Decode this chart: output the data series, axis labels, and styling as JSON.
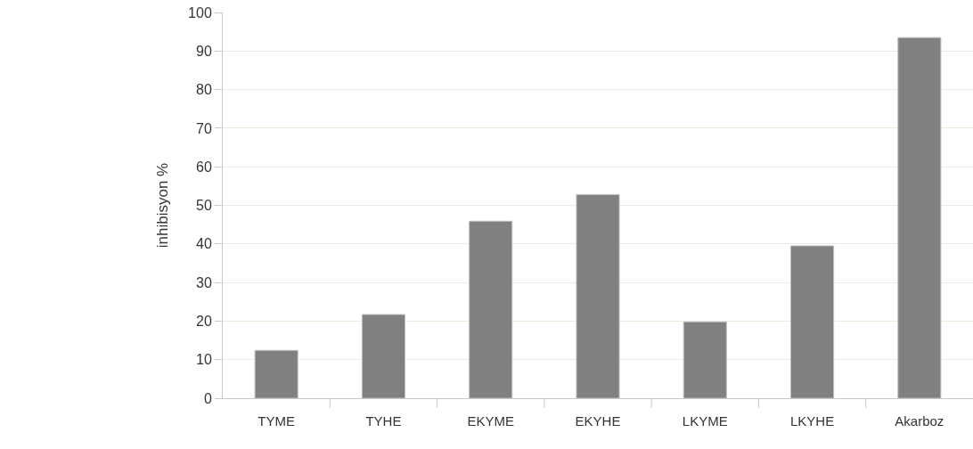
{
  "chart_data": {
    "type": "bar",
    "ylabel": "inhibisyon %",
    "categories": [
      "TYME",
      "TYHE",
      "EKYME",
      "EKYHE",
      "LKYME",
      "LKYHE",
      "Akarboz"
    ],
    "values": [
      12.4,
      21.7,
      45.9,
      52.8,
      19.8,
      39.5,
      93.5
    ],
    "color": "#808080",
    "ylim": [
      0,
      100
    ],
    "yticks": [
      0,
      10,
      20,
      30,
      40,
      50,
      60,
      70,
      80,
      90,
      100
    ],
    "grid": "y"
  }
}
